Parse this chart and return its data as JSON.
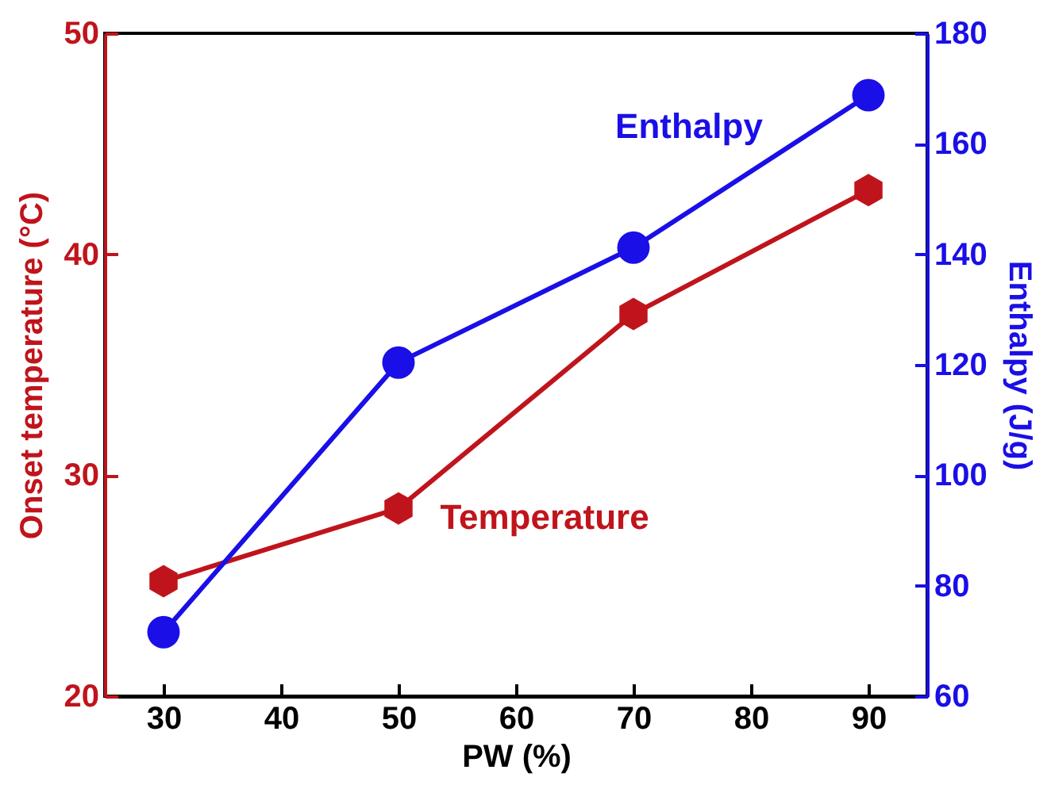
{
  "chart_data": {
    "type": "line",
    "xlabel": "PW (%)",
    "ylabel": "Onset temperature (°C)",
    "y2label": "Enthalpy (J/g)",
    "x": [
      30,
      50,
      70,
      90
    ],
    "series": [
      {
        "name": "Temperature",
        "color": "#c0141c",
        "marker": "diamond",
        "values": [
          25.2,
          28.5,
          37.3,
          42.9
        ]
      },
      {
        "name": "Enthalpy",
        "color": "#1a0fe6",
        "marker": "circle",
        "axis": "y2",
        "values": [
          71.6,
          120.4,
          141.2,
          168.8
        ]
      }
    ],
    "xlim": [
      25,
      95
    ],
    "xticks": [
      30,
      40,
      50,
      60,
      70,
      80,
      90
    ],
    "ylim": [
      20,
      50
    ],
    "yticks": [
      20,
      30,
      40,
      50
    ],
    "y2lim": [
      60,
      180
    ],
    "y2ticks": [
      60,
      80,
      100,
      120,
      140,
      160,
      180
    ],
    "grid": false,
    "line_style": "solid"
  }
}
